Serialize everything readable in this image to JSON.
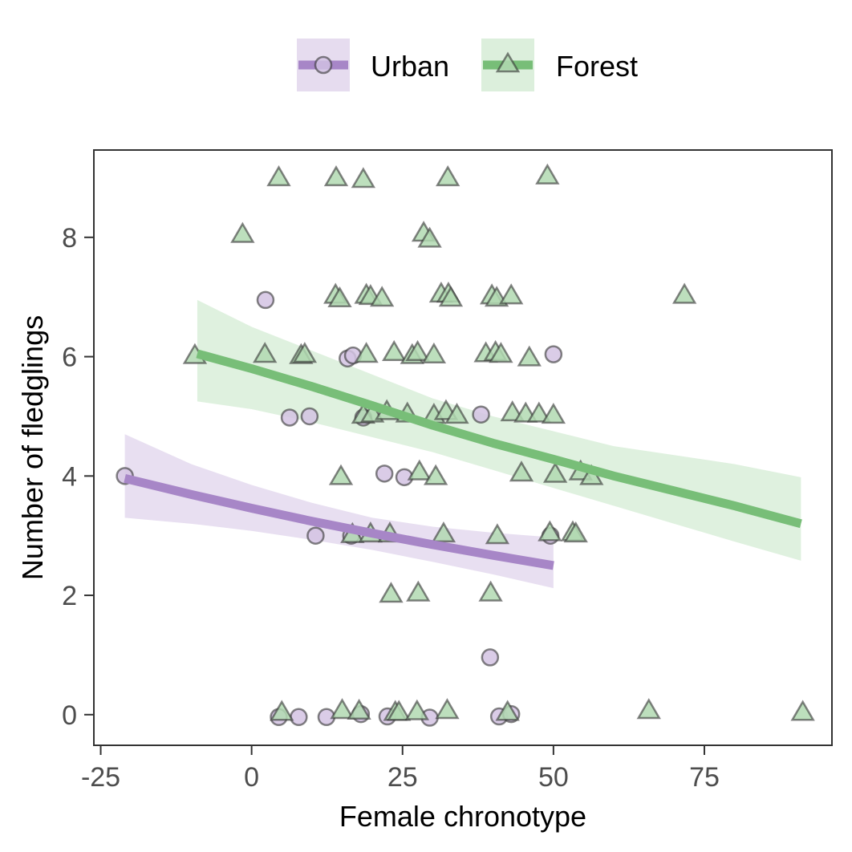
{
  "chart_data": {
    "type": "scatter",
    "xlabel": "Female chronotype",
    "ylabel": "Number of fledglings",
    "xlim": [
      -26,
      96
    ],
    "ylim": [
      -0.5,
      9.45
    ],
    "x_ticks": [
      -25,
      0,
      25,
      50,
      75
    ],
    "x_tick_labels": [
      "-25",
      "0",
      "25",
      "50",
      "75"
    ],
    "y_ticks": [
      0,
      2,
      4,
      6,
      8
    ],
    "y_tick_labels": [
      "0",
      "2",
      "4",
      "6",
      "8"
    ],
    "grid": false,
    "legend_position": "top",
    "series": [
      {
        "name": "Urban",
        "marker": "circle",
        "color": "#a786c7",
        "fill": "#d3c3e3",
        "band_color": "#e6dcef",
        "points": [
          [
            -21,
            4
          ],
          [
            2.3,
            6.95
          ],
          [
            6.3,
            4.98
          ],
          [
            9.6,
            5
          ],
          [
            10.6,
            3
          ],
          [
            15.9,
            5.97
          ],
          [
            16.8,
            6.02
          ],
          [
            16.5,
            3
          ],
          [
            18.5,
            4.98
          ],
          [
            22,
            4.04
          ],
          [
            25.3,
            3.98
          ],
          [
            38,
            5.03
          ],
          [
            39.5,
            0.96
          ],
          [
            49.5,
            3
          ],
          [
            50,
            6.04
          ],
          [
            4.5,
            -0.04
          ],
          [
            7.8,
            -0.04
          ],
          [
            12.4,
            -0.04
          ],
          [
            18.1,
            0.01
          ],
          [
            22.5,
            -0.03
          ],
          [
            29.5,
            -0.05
          ],
          [
            41,
            -0.03
          ],
          [
            43,
            0.01
          ]
        ],
        "fit": [
          [
            -21,
            3.96
          ],
          [
            -10,
            3.69
          ],
          [
            0,
            3.46
          ],
          [
            10,
            3.24
          ],
          [
            20,
            3.04
          ],
          [
            30,
            2.85
          ],
          [
            40,
            2.67
          ],
          [
            50,
            2.5
          ]
        ],
        "ci_upper": [
          [
            -21,
            4.7
          ],
          [
            -10,
            4.2
          ],
          [
            0,
            3.85
          ],
          [
            10,
            3.55
          ],
          [
            20,
            3.3
          ],
          [
            30,
            3.15
          ],
          [
            40,
            3.05
          ],
          [
            50,
            2.97
          ]
        ],
        "ci_lower": [
          [
            -21,
            3.3
          ],
          [
            -10,
            3.2
          ],
          [
            0,
            3.08
          ],
          [
            10,
            2.93
          ],
          [
            20,
            2.76
          ],
          [
            30,
            2.56
          ],
          [
            40,
            2.35
          ],
          [
            50,
            2.12
          ]
        ]
      },
      {
        "name": "Forest",
        "marker": "triangle",
        "color": "#78be78",
        "fill": "#b2d9b2",
        "band_color": "#dcefdc",
        "points": [
          [
            4.5,
            9
          ],
          [
            14,
            9
          ],
          [
            18.5,
            8.97
          ],
          [
            32.5,
            9
          ],
          [
            49,
            9.03
          ],
          [
            -1.5,
            8.05
          ],
          [
            28.5,
            8.07
          ],
          [
            29.5,
            7.97
          ],
          [
            13.9,
            7.03
          ],
          [
            14.6,
            6.97
          ],
          [
            19,
            7.03
          ],
          [
            19.7,
            7.01
          ],
          [
            21.6,
            6.98
          ],
          [
            31.4,
            7.05
          ],
          [
            32.6,
            7.05
          ],
          [
            33,
            6.98
          ],
          [
            39.8,
            7.02
          ],
          [
            40.6,
            6.98
          ],
          [
            43,
            7.02
          ],
          [
            71.7,
            7.03
          ],
          [
            -9.4,
            6.02
          ],
          [
            2.2,
            6.04
          ],
          [
            8.2,
            6.02
          ],
          [
            8.8,
            6.04
          ],
          [
            19,
            6.04
          ],
          [
            23.6,
            6.07
          ],
          [
            26.6,
            6.02
          ],
          [
            27.5,
            6.07
          ],
          [
            30.2,
            6.03
          ],
          [
            38.8,
            6.05
          ],
          [
            40.4,
            6.07
          ],
          [
            41.3,
            6.04
          ],
          [
            46,
            5.98
          ],
          [
            18.5,
            5.02
          ],
          [
            20,
            5.04
          ],
          [
            22.4,
            5.08
          ],
          [
            25.8,
            5.04
          ],
          [
            30.2,
            5.02
          ],
          [
            32.2,
            5.08
          ],
          [
            34,
            5.02
          ],
          [
            43.2,
            5.06
          ],
          [
            45.4,
            5.04
          ],
          [
            47.6,
            5.04
          ],
          [
            50,
            5.02
          ],
          [
            14.8,
            3.99
          ],
          [
            27.8,
            4.07
          ],
          [
            30.5,
            3.99
          ],
          [
            44.7,
            4.05
          ],
          [
            50.3,
            4.03
          ],
          [
            54.5,
            4.07
          ],
          [
            56.3,
            3.99
          ],
          [
            16.7,
            3.02
          ],
          [
            19.7,
            3.03
          ],
          [
            22.9,
            3.03
          ],
          [
            31.8,
            3.03
          ],
          [
            40.7,
            3
          ],
          [
            49.4,
            3.05
          ],
          [
            53.2,
            3.05
          ],
          [
            53.7,
            3.03
          ],
          [
            23.1,
            2.02
          ],
          [
            27.6,
            2.04
          ],
          [
            39.6,
            2.04
          ],
          [
            5,
            0.04
          ],
          [
            15,
            0.07
          ],
          [
            17.8,
            0.06
          ],
          [
            23.8,
            0.04
          ],
          [
            24.4,
            0.04
          ],
          [
            27.4,
            0.05
          ],
          [
            32.4,
            0.07
          ],
          [
            42.4,
            0.04
          ],
          [
            65.8,
            0.07
          ],
          [
            91.3,
            0.04
          ]
        ],
        "fit": [
          [
            -9,
            6.05
          ],
          [
            0,
            5.8
          ],
          [
            10,
            5.5
          ],
          [
            20,
            5.18
          ],
          [
            30,
            4.85
          ],
          [
            40,
            4.55
          ],
          [
            50,
            4.28
          ],
          [
            60,
            4.0
          ],
          [
            70,
            3.75
          ],
          [
            80,
            3.5
          ],
          [
            91,
            3.2
          ]
        ],
        "ci_upper": [
          [
            -9,
            6.95
          ],
          [
            0,
            6.5
          ],
          [
            10,
            6.1
          ],
          [
            20,
            5.7
          ],
          [
            30,
            5.3
          ],
          [
            40,
            5.0
          ],
          [
            50,
            4.75
          ],
          [
            60,
            4.5
          ],
          [
            70,
            4.35
          ],
          [
            80,
            4.2
          ],
          [
            91,
            3.98
          ]
        ],
        "ci_lower": [
          [
            -9,
            5.25
          ],
          [
            0,
            5.12
          ],
          [
            10,
            4.9
          ],
          [
            20,
            4.65
          ],
          [
            30,
            4.4
          ],
          [
            40,
            4.1
          ],
          [
            50,
            3.8
          ],
          [
            60,
            3.5
          ],
          [
            70,
            3.2
          ],
          [
            80,
            2.9
          ],
          [
            91,
            2.58
          ]
        ]
      }
    ]
  }
}
